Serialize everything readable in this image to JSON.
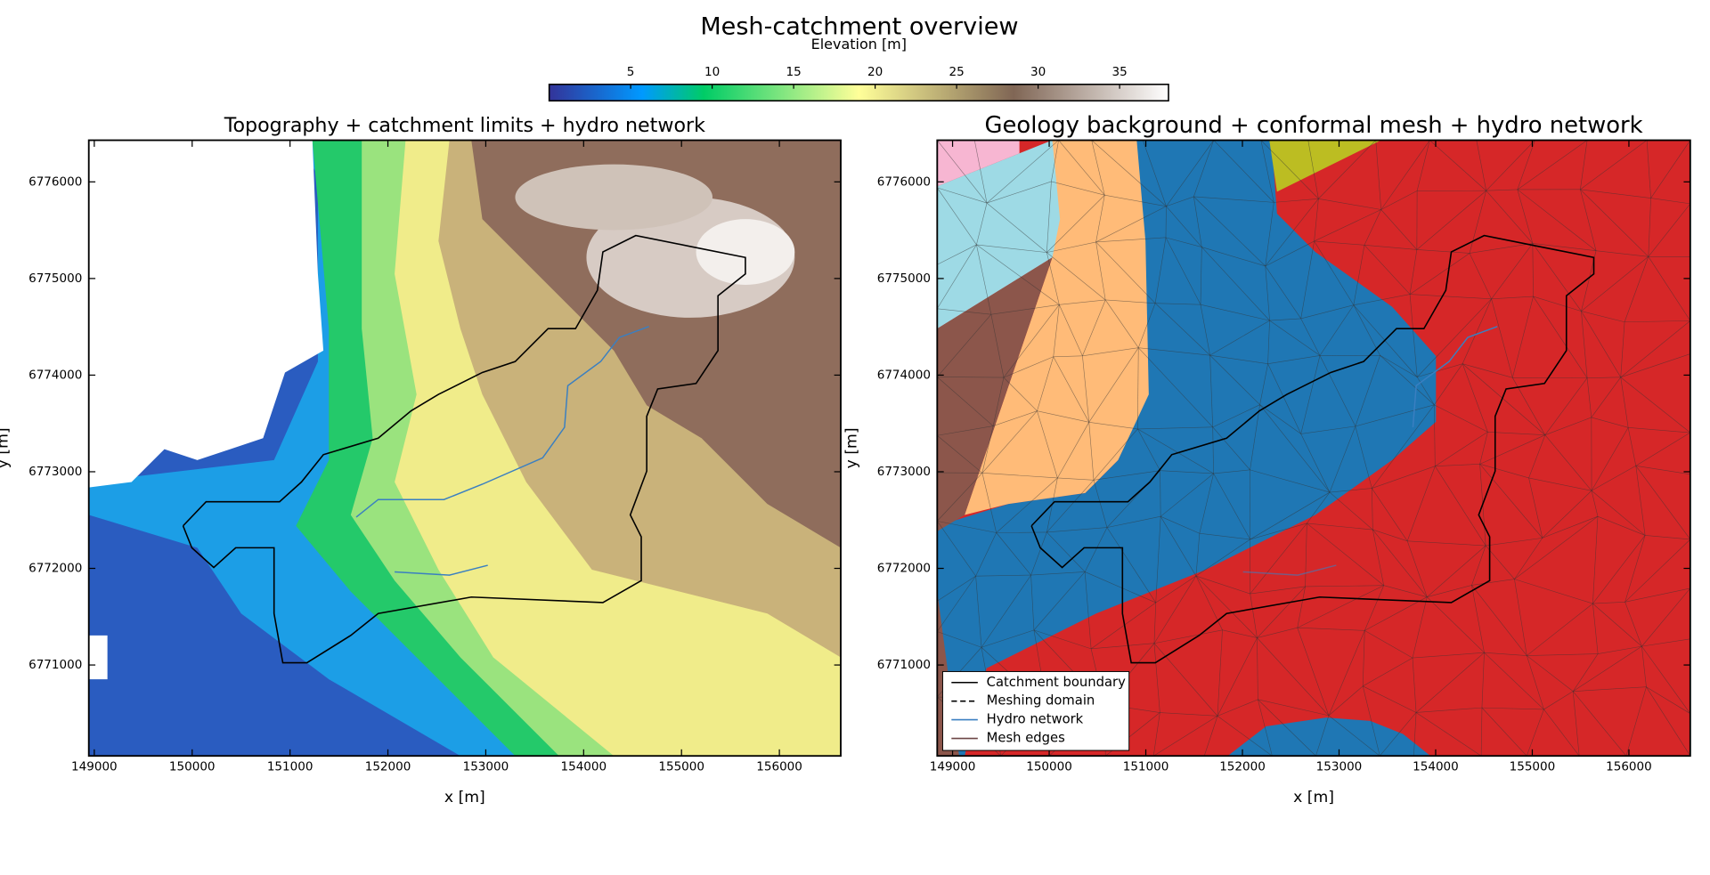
{
  "title": "Mesh-catchment overview",
  "colorbar": {
    "label": "Elevation [m]",
    "colormap": "terrain",
    "lim": [
      0,
      38
    ],
    "ticks": [
      5,
      10,
      15,
      20,
      25,
      30,
      35
    ]
  },
  "chart_data": [
    {
      "type": "raster",
      "title": "Topography + catchment limits + hydro network",
      "x_label": "x [m]",
      "y_label": "y [m]",
      "xlim": [
        148944,
        156627
      ],
      "ylim": [
        6770059,
        6776431
      ],
      "xticks": [
        149000,
        150000,
        151000,
        152000,
        153000,
        154000,
        155000,
        156000
      ],
      "yticks": [
        6771000,
        6772000,
        6773000,
        6774000,
        6775000,
        6776000
      ]
    },
    {
      "type": "map",
      "title": "Geology background + conformal mesh + hydro network",
      "x_label": "x [m]",
      "y_label": "y [m]",
      "xlim": [
        148841,
        156635
      ],
      "ylim": [
        6770059,
        6776431
      ],
      "xticks": [
        149000,
        150000,
        151000,
        152000,
        153000,
        154000,
        155000,
        156000
      ],
      "yticks": [
        6771000,
        6772000,
        6773000,
        6774000,
        6775000,
        6776000
      ],
      "legend": "lower left",
      "legend_entries": [
        {
          "name": "Catchment boundary",
          "color": "#000000",
          "style": "solid"
        },
        {
          "name": "Meshing domain",
          "color": "#000000",
          "style": "dashed"
        },
        {
          "name": "Hydro network",
          "color": "#3a7fc1",
          "style": "solid"
        },
        {
          "name": "Mesh edges",
          "color": "#6b4545",
          "style": "solid"
        }
      ]
    }
  ]
}
